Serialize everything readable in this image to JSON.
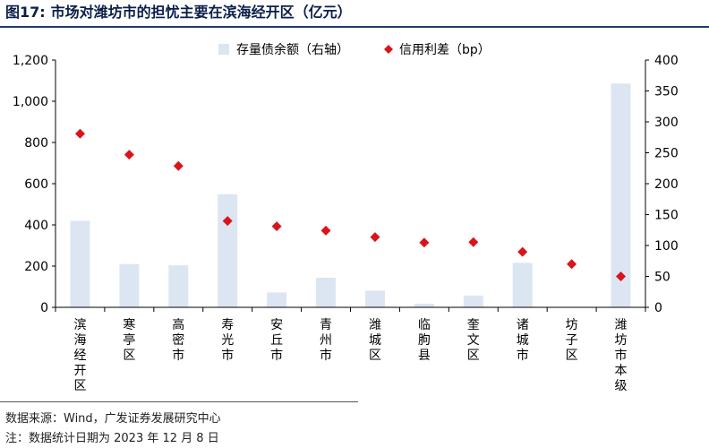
{
  "figure": {
    "number": "图17:",
    "title": "市场对潍坊市的担忧主要在滨海经开区（亿元）"
  },
  "footer": {
    "source": "数据来源：Wind，广发证券发展研究中心",
    "note": "注：数据统计日期为 2023 年 12 月 8 日"
  },
  "colors": {
    "bar": "#dce6f2",
    "point": "#d9141b",
    "axis": "#000000",
    "title": "#0b1f4a"
  },
  "chart_data": {
    "type": "bar",
    "categories": [
      "滨海经开区",
      "寒亭区",
      "高密市",
      "寿光市",
      "安丘市",
      "青州市",
      "潍城区",
      "临朐县",
      "奎文区",
      "诸城市",
      "坊子区",
      "潍坊市本级"
    ],
    "series": [
      {
        "name": "存量债余额（右轴）",
        "type": "bar",
        "axis": "right",
        "values": [
          140,
          70,
          68,
          183,
          24,
          48,
          27,
          6,
          19,
          72,
          0,
          362
        ]
      },
      {
        "name": "信用利差（bp）",
        "type": "scatter",
        "axis": "left",
        "values": [
          842,
          741,
          686,
          419,
          393,
          372,
          341,
          314,
          316,
          269,
          210,
          150
        ]
      }
    ],
    "y_left": {
      "ylim": [
        0,
        1200
      ],
      "ticks": [
        "0",
        "200",
        "400",
        "600",
        "800",
        "1,000",
        "1,200"
      ]
    },
    "y_right": {
      "ylim": [
        0,
        400
      ],
      "ticks": [
        "0",
        "50",
        "100",
        "150",
        "200",
        "250",
        "300",
        "350",
        "400"
      ]
    },
    "legend_position": "top",
    "grid": false
  }
}
